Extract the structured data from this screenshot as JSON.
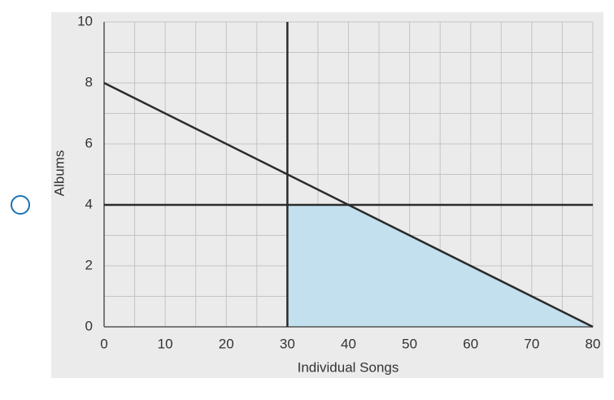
{
  "chart_data": {
    "type": "line",
    "xlabel": "Individual Songs",
    "ylabel": "Albums",
    "xlim": [
      0,
      80
    ],
    "ylim": [
      0,
      10
    ],
    "xticks": [
      0,
      10,
      20,
      30,
      40,
      50,
      60,
      70,
      80
    ],
    "yticks": [
      0,
      2,
      4,
      6,
      8,
      10
    ],
    "x_minor_ticks": [
      5,
      15,
      25,
      35,
      45,
      55,
      65,
      75
    ],
    "y_minor_ticks": [
      1,
      3,
      5,
      7,
      9
    ],
    "grid": true,
    "series": [
      {
        "color": "#2b2b2b",
        "x": [
          0,
          80
        ],
        "values": [
          8,
          0
        ]
      },
      {
        "color": "#2b2b2b",
        "x": [
          0,
          80
        ],
        "values": [
          4,
          4
        ]
      },
      {
        "color": "#2b2b2b",
        "x": [
          30,
          30
        ],
        "values": [
          0,
          10
        ]
      }
    ],
    "region": {
      "color": "#c3e0ee",
      "x": [
        30,
        30,
        40,
        80
      ],
      "values": [
        0,
        4,
        4,
        0
      ]
    }
  }
}
